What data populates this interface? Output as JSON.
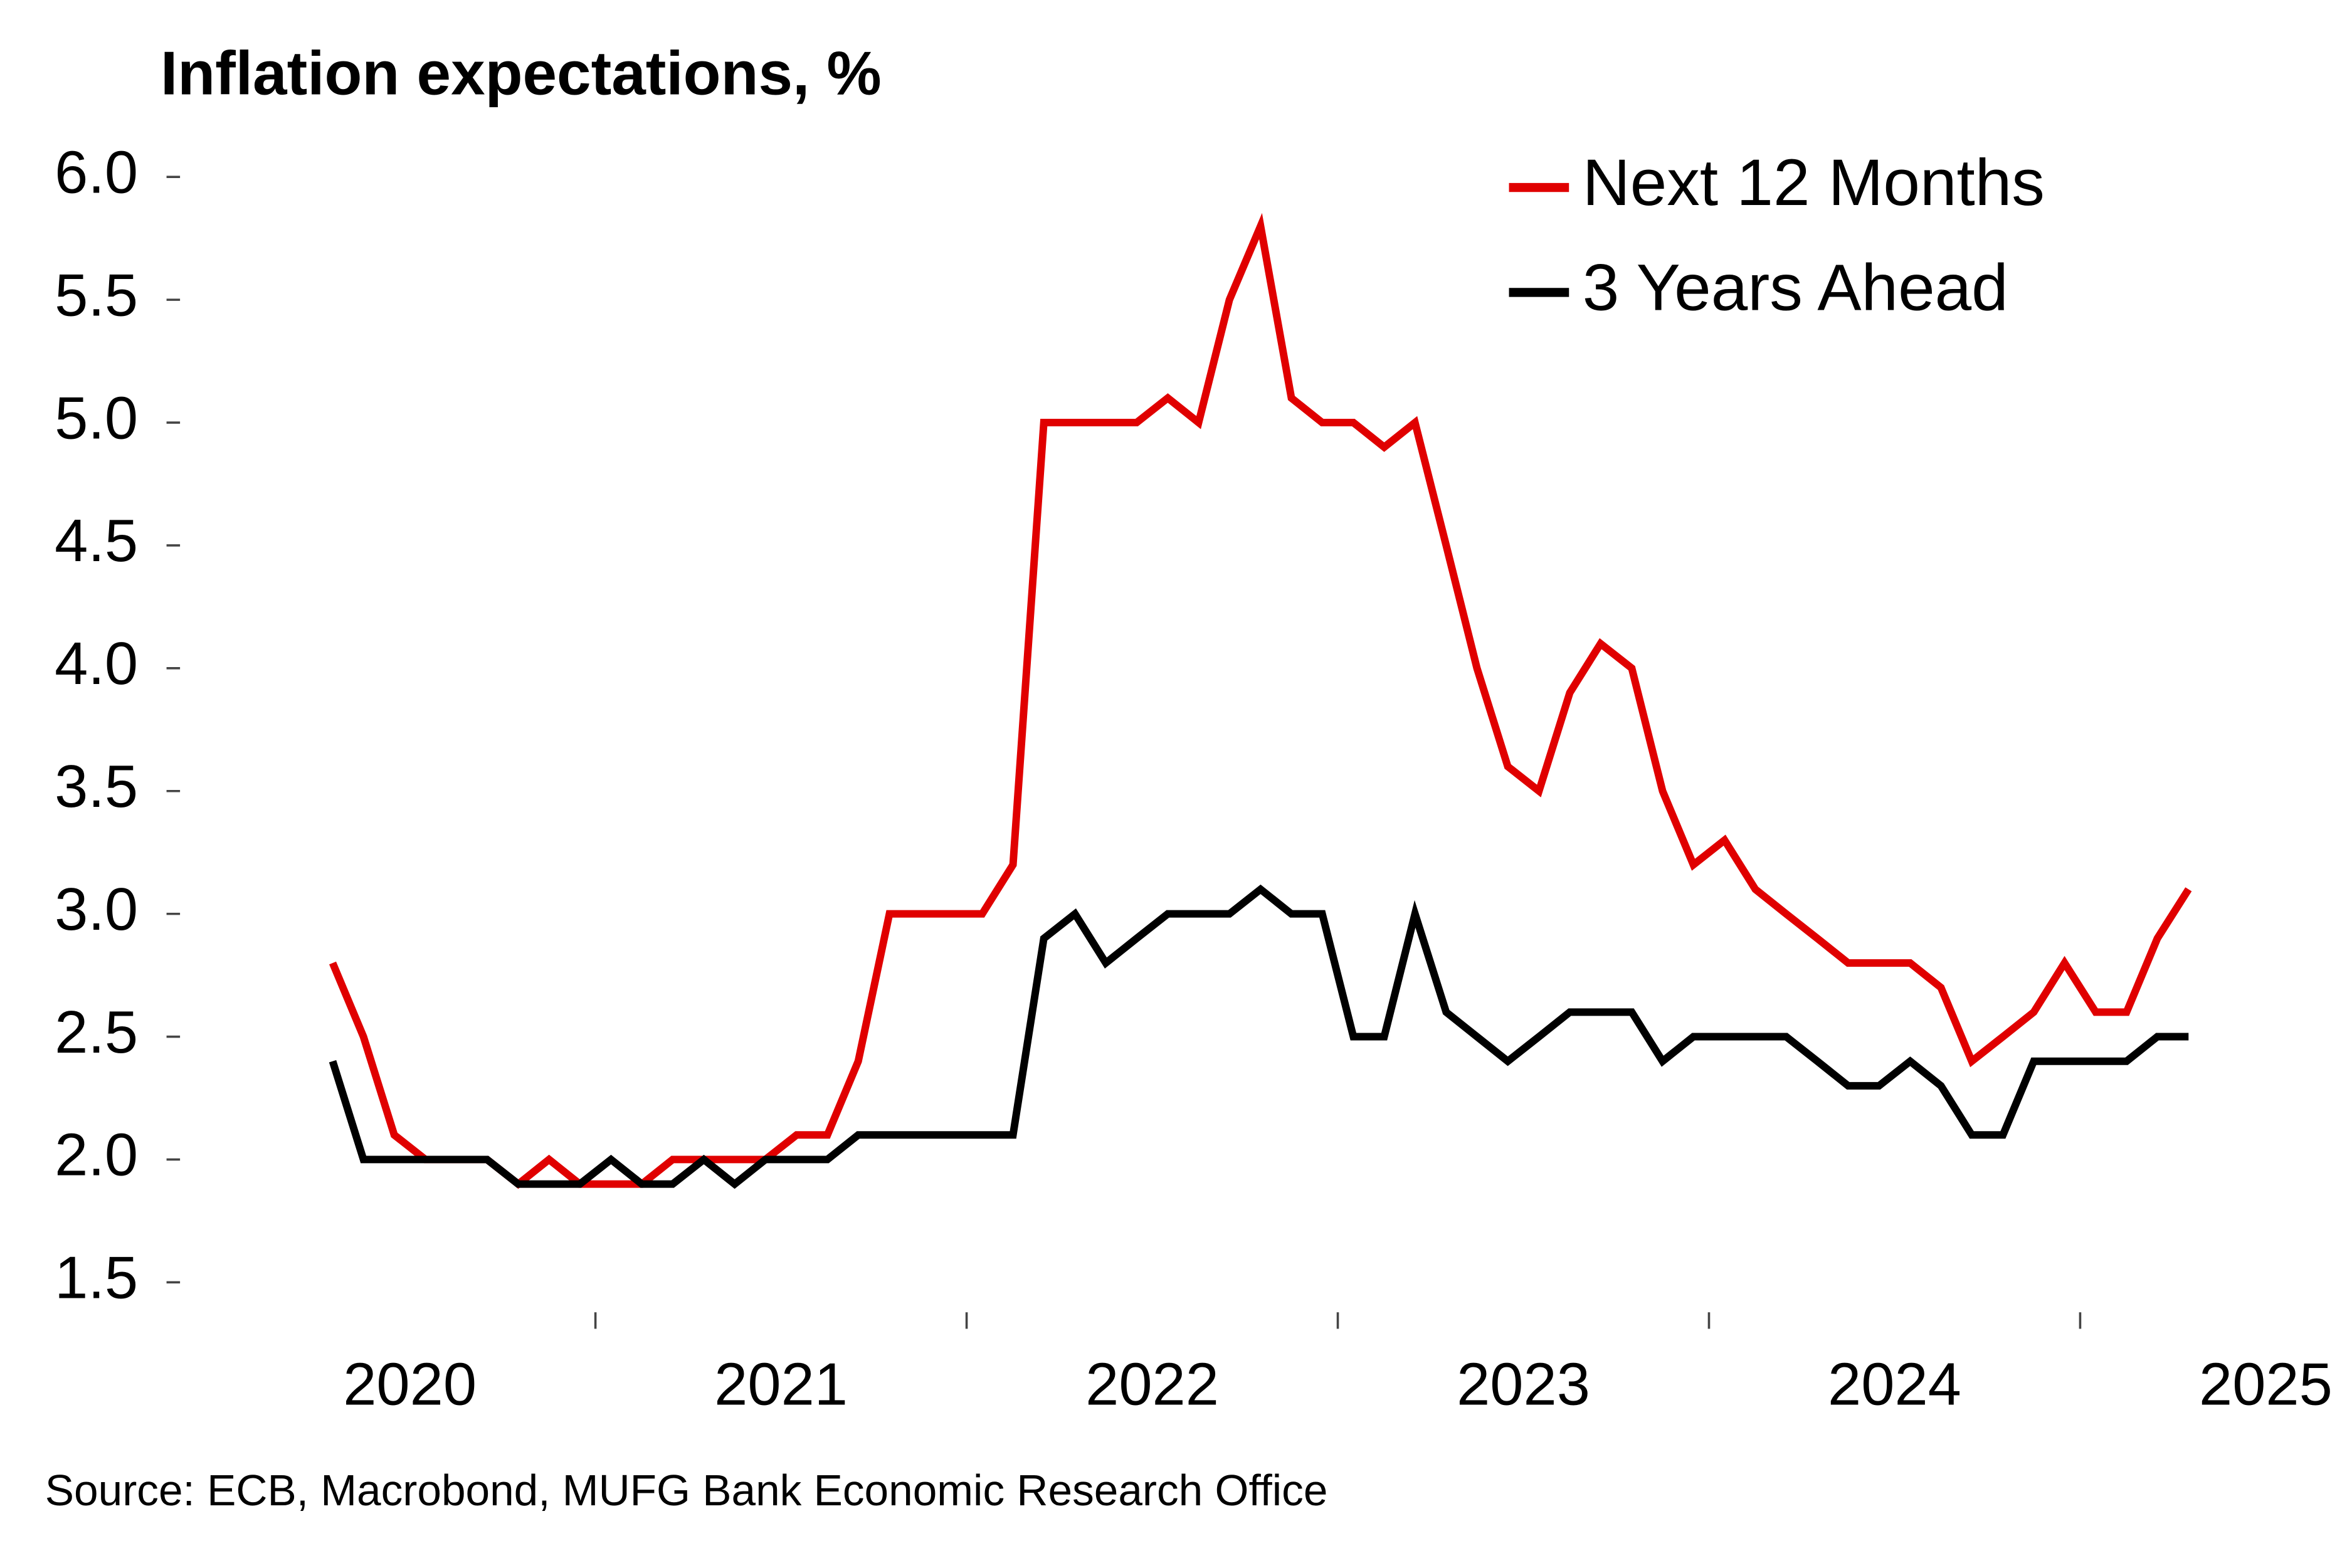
{
  "chart_data": {
    "type": "line",
    "title": "Inflation expectations, %",
    "source": "Source: ECB, Macrobond, MUFG Bank Economic Research Office",
    "x": [
      2020.292,
      2020.375,
      2020.458,
      2020.542,
      2020.625,
      2020.708,
      2020.792,
      2020.875,
      2020.958,
      2021.042,
      2021.125,
      2021.208,
      2021.292,
      2021.375,
      2021.458,
      2021.542,
      2021.625,
      2021.708,
      2021.792,
      2021.875,
      2021.958,
      2022.042,
      2022.125,
      2022.208,
      2022.292,
      2022.375,
      2022.458,
      2022.542,
      2022.625,
      2022.708,
      2022.792,
      2022.875,
      2022.958,
      2023.042,
      2023.125,
      2023.208,
      2023.292,
      2023.375,
      2023.458,
      2023.542,
      2023.625,
      2023.708,
      2023.792,
      2023.875,
      2023.958,
      2024.042,
      2024.125,
      2024.208,
      2024.292,
      2024.375,
      2024.458,
      2024.542,
      2024.625,
      2024.708,
      2024.792,
      2024.875,
      2024.958,
      2025.042,
      2025.125,
      2025.208,
      2025.292
    ],
    "series": [
      {
        "name": "Next 12 Months",
        "color": "#e00000",
        "values": [
          2.8,
          2.5,
          2.1,
          2.0,
          2.0,
          2.0,
          1.9,
          2.0,
          1.9,
          1.9,
          1.9,
          2.0,
          2.0,
          2.0,
          2.0,
          2.1,
          2.1,
          2.4,
          3.0,
          3.0,
          3.0,
          3.0,
          3.2,
          5.0,
          5.0,
          5.0,
          5.0,
          5.1,
          5.0,
          5.5,
          5.8,
          5.1,
          5.0,
          5.0,
          4.9,
          5.0,
          4.5,
          4.0,
          3.6,
          3.5,
          3.9,
          4.1,
          4.0,
          3.5,
          3.2,
          3.3,
          3.1,
          3.0,
          2.9,
          2.8,
          2.8,
          2.8,
          2.7,
          2.4,
          2.5,
          2.6,
          2.8,
          2.6,
          2.6,
          2.9,
          3.1
        ]
      },
      {
        "name": "3 Years Ahead",
        "color": "#000000",
        "values": [
          2.4,
          2.0,
          2.0,
          2.0,
          2.0,
          2.0,
          1.9,
          1.9,
          1.9,
          2.0,
          1.9,
          1.9,
          2.0,
          1.9,
          2.0,
          2.0,
          2.0,
          2.1,
          2.1,
          2.1,
          2.1,
          2.1,
          2.1,
          2.9,
          3.0,
          2.8,
          2.9,
          3.0,
          3.0,
          3.0,
          3.1,
          3.0,
          3.0,
          2.5,
          2.5,
          3.0,
          2.6,
          2.5,
          2.4,
          2.5,
          2.6,
          2.6,
          2.6,
          2.4,
          2.5,
          2.5,
          2.5,
          2.5,
          2.4,
          2.3,
          2.3,
          2.4,
          2.3,
          2.1,
          2.1,
          2.4,
          2.4,
          2.4,
          2.4,
          2.5,
          2.5
        ]
      }
    ],
    "xlim": [
      2019.8,
      2025.7
    ],
    "xticks": [
      {
        "value": 2020.5,
        "label": "2020"
      },
      {
        "value": 2021.5,
        "label": "2021"
      },
      {
        "value": 2022.5,
        "label": "2022"
      },
      {
        "value": 2023.5,
        "label": "2023"
      },
      {
        "value": 2024.5,
        "label": "2024"
      },
      {
        "value": 2025.5,
        "label": "2025"
      }
    ],
    "xminor_ticks": [
      2021,
      2022,
      2023,
      2024,
      2025
    ],
    "ylim": [
      1.4,
      6.1
    ],
    "yticks": [
      1.5,
      {
        "value": 2,
        "label": "2.0"
      },
      2.5,
      {
        "value": 3,
        "label": "3.0"
      },
      3.5,
      {
        "value": 4,
        "label": "4.0"
      },
      4.5,
      {
        "value": 5,
        "label": "5.0"
      },
      5.5,
      {
        "value": 6,
        "label": "6.0"
      }
    ],
    "legend": "top-right",
    "grid": false
  }
}
